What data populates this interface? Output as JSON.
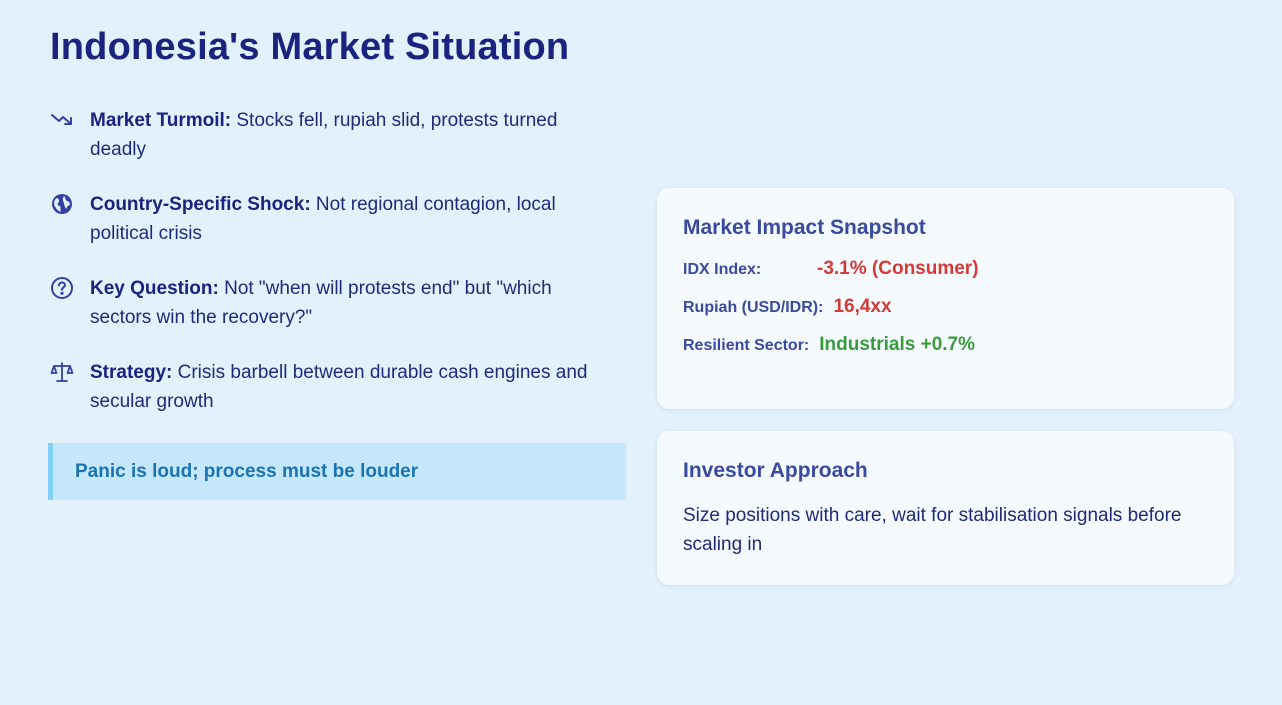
{
  "slide": {
    "title": "Indonesia's Market Situation"
  },
  "points": [
    {
      "icon": "trend-down-icon",
      "label": "Market Turmoil:",
      "text": " Stocks fell, rupiah slid, protests turned deadly"
    },
    {
      "icon": "globe-icon",
      "label": "Country-Specific Shock:",
      "text": " Not regional contagion, local political crisis"
    },
    {
      "icon": "question-icon",
      "label": "Key Question:",
      "text": " Not \"when will protests end\" but \"which sectors win the recovery?\""
    },
    {
      "icon": "scale-icon",
      "label": "Strategy:",
      "text": " Crisis barbell between durable cash engines and secular growth"
    }
  ],
  "callout": {
    "text": "Panic is loud; process must be louder"
  },
  "snapshot": {
    "title": "Market Impact Snapshot",
    "rows": [
      {
        "label": "IDX Index:",
        "value": "-3.1% (Consumer)",
        "color": "#d63a34"
      },
      {
        "label": "Rupiah (USD/IDR):",
        "value": "16,4xx",
        "color": "#d63a34"
      },
      {
        "label": "Resilient Sector:",
        "value": "Industrials +0.7%",
        "color": "#3a9a3e"
      }
    ]
  },
  "approach": {
    "title": "Investor Approach",
    "text": "Size positions with care, wait for stabilisation signals before scaling in"
  }
}
